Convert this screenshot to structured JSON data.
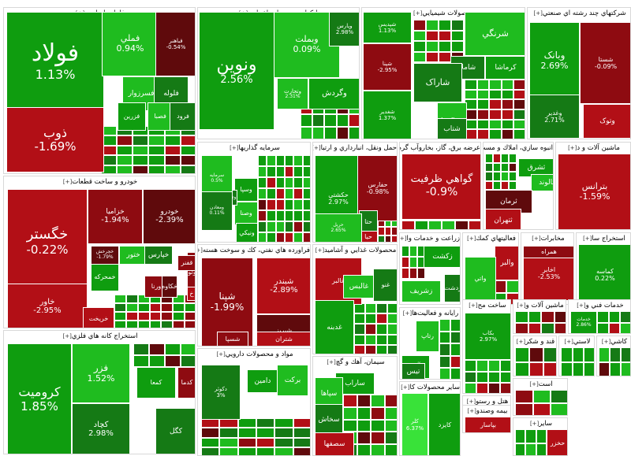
{
  "sectors": [
    {
      "title": "فلزات اساسی",
      "plus": "[+]",
      "tiles": [
        {
          "name": "فولاد",
          "change": "1.13%",
          "color": "green"
        },
        {
          "name": "فملي",
          "change": "0.94%",
          "color": "green"
        },
        {
          "name": "فباهنر",
          "change": "-0.54%",
          "color": "red"
        },
        {
          "name": "ذوب",
          "change": "-1.69%",
          "color": "red"
        },
        {
          "name": "فسرزوار",
          "change": "",
          "color": "green"
        },
        {
          "name": "فلوله",
          "change": "",
          "color": "green"
        },
        {
          "name": "فزرين",
          "change": "",
          "color": "green"
        },
        {
          "name": "فصبا",
          "change": "",
          "color": "green"
        },
        {
          "name": "فرود",
          "change": "",
          "color": "green"
        }
      ]
    },
    {
      "title": "بانکها و موسسات اعتباري",
      "plus": "[+]",
      "tiles": [
        {
          "name": "ونوين",
          "change": "2.56%",
          "color": "green"
        },
        {
          "name": "وبملت",
          "change": "0.09%",
          "color": "green"
        },
        {
          "name": "وپارس",
          "change": "2.98%",
          "color": "green"
        },
        {
          "name": "وگردش",
          "change": "",
          "color": "green"
        },
        {
          "name": "وتجارت",
          "change": "2.31%",
          "color": "green"
        }
      ]
    },
    {
      "title": "محصولات شيميايي",
      "plus": "[+]",
      "tiles": [
        {
          "name": "شپديس",
          "change": "1.13%",
          "color": "green"
        },
        {
          "name": "شرنگي",
          "change": "",
          "color": "green"
        },
        {
          "name": "شاملا",
          "change": "",
          "color": "green"
        },
        {
          "name": "کرماشا",
          "change": "",
          "color": "green"
        },
        {
          "name": "شپنا",
          "change": "-2.95%",
          "color": "red"
        },
        {
          "name": "شاراک",
          "change": "",
          "color": "green"
        },
        {
          "name": "شغدير",
          "change": "1.37%",
          "color": "green"
        },
        {
          "name": "شپاکسا",
          "change": "",
          "color": "green"
        },
        {
          "name": "شتاب",
          "change": "",
          "color": "green"
        }
      ]
    },
    {
      "title": "شرکتهاي چند رشته اي صنعتي",
      "plus": "[+]",
      "tiles": [
        {
          "name": "وبانک",
          "change": "2.69%",
          "color": "green"
        },
        {
          "name": "شستا",
          "change": "-0.09%",
          "color": "red"
        },
        {
          "name": "وغدير",
          "change": "2.71%",
          "color": "green"
        },
        {
          "name": "وتوک",
          "change": "",
          "color": "red"
        }
      ]
    },
    {
      "title": "خودرو و ساخت قطعات",
      "plus": "[+]",
      "tiles": [
        {
          "name": "خگستر",
          "change": "-0.22%",
          "color": "red"
        },
        {
          "name": "خزاميا",
          "change": "-1.94%",
          "color": "red"
        },
        {
          "name": "خودرو",
          "change": "-2.39%",
          "color": "red"
        },
        {
          "name": "خاور",
          "change": "-2.95%",
          "color": "red"
        },
        {
          "name": "ختور",
          "change": "",
          "color": "green"
        },
        {
          "name": "خپارس",
          "change": "",
          "color": "green"
        },
        {
          "name": "خمحركه",
          "change": "",
          "color": "green"
        },
        {
          "name": "ورنا",
          "change": "",
          "color": "red"
        },
        {
          "name": "خكاوه",
          "change": "",
          "color": "red"
        },
        {
          "name": "خريخت",
          "change": "",
          "color": "red"
        },
        {
          "name": "خوتوقا",
          "change": "",
          "color": "red"
        },
        {
          "name": "خچرخش",
          "change": "-1.79%",
          "color": "red"
        },
        {
          "name": "خ",
          "change": "",
          "color": "red"
        },
        {
          "name": "قفنر",
          "change": "",
          "color": "red"
        }
      ]
    },
    {
      "title": "سرمايه گذاريها",
      "plus": "[+]",
      "tiles": [
        {
          "name": "وسپا",
          "change": "",
          "color": "green"
        },
        {
          "name": "وصنا",
          "change": "",
          "color": "green"
        },
        {
          "name": "وتوسم",
          "change": "",
          "color": "green"
        },
        {
          "name": "ونيكي",
          "change": "",
          "color": "green"
        },
        {
          "name": "سرمايه",
          "change": "0.5%",
          "color": "green"
        },
        {
          "name": "ومعادن",
          "change": "0.11%",
          "color": "green"
        }
      ]
    },
    {
      "title": "حمل ونقل، انبارداري و ارتبا",
      "plus": "[+]",
      "tiles": [
        {
          "name": "حكشتي",
          "change": "2.97%",
          "color": "green"
        },
        {
          "name": "حفارس",
          "change": "-0.98%",
          "color": "red"
        },
        {
          "name": "حتا",
          "change": "",
          "color": "green"
        },
        {
          "name": "حيا",
          "change": "",
          "color": "red"
        },
        {
          "name": "حريل",
          "change": "2.65%",
          "color": "green"
        }
      ]
    },
    {
      "title": "عرضه برق، گاز، بخاروآب گرم",
      "plus": "[+]",
      "tiles": [
        {
          "name": "گواهي ظرفيت",
          "change": "-0.9%",
          "color": "red"
        }
      ]
    },
    {
      "title": "انبوه سازي، املاك و مست",
      "plus": "[+]",
      "tiles": [
        {
          "name": "ثشرق",
          "change": "",
          "color": "green"
        },
        {
          "name": "ثالوند",
          "change": "",
          "color": "green"
        },
        {
          "name": "ثرمان",
          "change": "",
          "color": "red"
        },
        {
          "name": "ثتهران",
          "change": "",
          "color": "red"
        }
      ]
    },
    {
      "title": "ماشين آلات و د",
      "plus": "[+]",
      "tiles": [
        {
          "name": "بترانس",
          "change": "-1.59%",
          "color": "red"
        }
      ]
    },
    {
      "title": "فراورده هاي نفتي، كك و سوخت هسته",
      "plus": "[+]",
      "tiles": [
        {
          "name": "شبندر",
          "change": "-2.89%",
          "color": "red"
        },
        {
          "name": "شپنا",
          "change": "-1.99%",
          "color": "red"
        },
        {
          "name": "شبريز",
          "change": "",
          "color": "red"
        },
        {
          "name": "شتران",
          "change": "",
          "color": "red"
        },
        {
          "name": "شسپا",
          "change": "",
          "color": "red"
        }
      ]
    },
    {
      "title": "محصولات غذايي و آشاميد",
      "plus": "[+]",
      "tiles": [
        {
          "name": "غالبر",
          "change": "",
          "color": "red"
        },
        {
          "name": "غالبس",
          "change": "",
          "color": "green"
        },
        {
          "name": "غنو",
          "change": "",
          "color": "green"
        },
        {
          "name": "غدبنه",
          "change": "",
          "color": "green"
        }
      ]
    },
    {
      "title": "زراعت و خدمات وا",
      "plus": "[+]",
      "tiles": [
        {
          "name": "زكشت",
          "change": "",
          "color": "green"
        },
        {
          "name": "زشريف",
          "change": "",
          "color": "green"
        },
        {
          "name": "زدشت",
          "change": "",
          "color": "green"
        }
      ]
    },
    {
      "title": "فعاليتهاي كمك",
      "plus": "[+]",
      "tiles": [
        {
          "name": "والبر",
          "change": "",
          "color": "red"
        },
        {
          "name": "واتي",
          "change": "",
          "color": "green"
        }
      ]
    },
    {
      "title": "مخابرات",
      "plus": "[+]",
      "tiles": [
        {
          "name": "اخابر",
          "change": "-2.53%",
          "color": "red"
        },
        {
          "name": "همراه",
          "change": "",
          "color": "red"
        }
      ]
    },
    {
      "title": "استخراج سا",
      "plus": "[+]",
      "tiles": [
        {
          "name": "كماسه",
          "change": "0.22%",
          "color": "green"
        }
      ]
    },
    {
      "title": "استخراج كانه هاي فلزي",
      "plus": "[+]",
      "tiles": [
        {
          "name": "كروميت",
          "change": "1.85%",
          "color": "green"
        },
        {
          "name": "فزر",
          "change": "1.52%",
          "color": "green"
        },
        {
          "name": "كچاد",
          "change": "2.98%",
          "color": "green"
        },
        {
          "name": "كمعا",
          "change": "",
          "color": "green"
        },
        {
          "name": "كدما",
          "change": "",
          "color": "red"
        },
        {
          "name": "كگل",
          "change": "",
          "color": "green"
        }
      ]
    },
    {
      "title": "مواد و محصولات دارويي",
      "plus": "[+]",
      "tiles": [
        {
          "name": "دامين",
          "change": "",
          "color": "green"
        },
        {
          "name": "بركت",
          "change": "",
          "color": "green"
        },
        {
          "name": "دكوثر",
          "change": "3%",
          "color": "green"
        }
      ]
    },
    {
      "title": "سيمان، آهك و گچ",
      "plus": "[+]",
      "tiles": [
        {
          "name": "ساراب",
          "change": "",
          "color": "green"
        },
        {
          "name": "سپاها",
          "change": "",
          "color": "green"
        },
        {
          "name": "سخاش",
          "change": "",
          "color": "green"
        },
        {
          "name": "سصفها",
          "change": "",
          "color": "red"
        }
      ]
    },
    {
      "title": "رايانه و فعاليت‌ها",
      "plus": "[+]",
      "tiles": [
        {
          "name": "آپ",
          "change": "",
          "color": "green"
        },
        {
          "name": "رتاپ",
          "change": "",
          "color": "green"
        },
        {
          "name": "تيس",
          "change": "",
          "color": "green"
        }
      ]
    },
    {
      "title": "ساخت مح",
      "plus": "[+]",
      "tiles": [
        {
          "name": "بكاب",
          "change": "2.97%",
          "color": "green"
        }
      ]
    },
    {
      "title": "ماشين آلات و",
      "plus": "[+]",
      "tiles": []
    },
    {
      "title": "خدمات فني و",
      "plus": "[+]",
      "tiles": [
        {
          "name": "خدمات",
          "change": "2.86%",
          "color": "green"
        }
      ]
    },
    {
      "title": "قند و شكر",
      "plus": "[+]",
      "tiles": []
    },
    {
      "title": "لاستي",
      "plus": "[+]",
      "tiles": []
    },
    {
      "title": "كاشي",
      "plus": "[+]",
      "tiles": []
    },
    {
      "title": "هتل و رستو",
      "plus": "[+]",
      "tiles": []
    },
    {
      "title": "ساير محصولات كا",
      "plus": "[+]",
      "tiles": [
        {
          "name": "كايزد",
          "change": "",
          "color": "green"
        },
        {
          "name": "كلر",
          "change": "6.37%",
          "color": "green"
        }
      ]
    },
    {
      "title": "بيمه وصندو",
      "plus": "[+]",
      "tiles": [
        {
          "name": "بپاسار",
          "change": "",
          "color": "red"
        }
      ]
    },
    {
      "title": "ساير",
      "plus": "[+]",
      "tiles": [
        {
          "name": "حخزر",
          "change": "",
          "color": "red"
        }
      ]
    },
    {
      "title": "است",
      "plus": "[+]",
      "tiles": []
    }
  ]
}
